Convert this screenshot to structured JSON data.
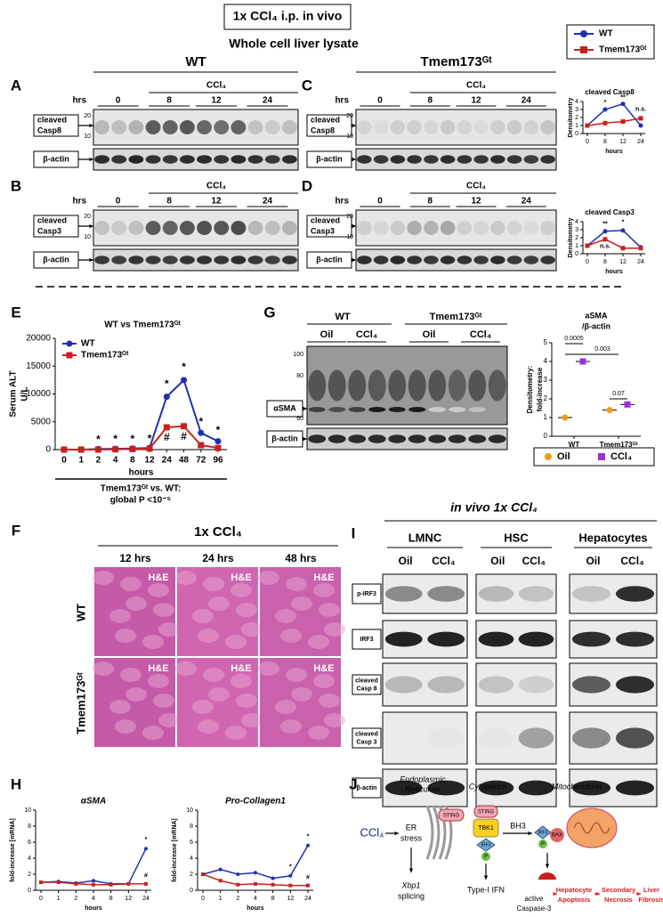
{
  "figure": {
    "title": "1x CCl₄ i.p. in vivo",
    "subtitle": "Whole cell liver lysate",
    "legend": [
      {
        "name": "WT",
        "color": "#1f2fb5"
      },
      {
        "name": "Tmem173ᴳᵗ",
        "color": "#c8201e"
      }
    ]
  },
  "blots": {
    "A": {
      "label": "A",
      "group": "WT",
      "hrs": "hrs",
      "treatment": "CCl₄",
      "times": [
        "0",
        "8",
        "12",
        "24"
      ],
      "mw": [
        "20",
        "10"
      ],
      "target": [
        "cleaved",
        "Casp8"
      ],
      "loading": "β-actin"
    },
    "B": {
      "label": "B",
      "hrs": "hrs",
      "treatment": "CCl₄",
      "times": [
        "0",
        "8",
        "12",
        "24"
      ],
      "mw": [
        "20",
        "10"
      ],
      "target": [
        "cleaved",
        "Casp3"
      ],
      "loading": "β-actin"
    },
    "C": {
      "label": "C",
      "group": "Tmem173ᴳᵗ",
      "hrs": "hrs",
      "treatment": "CCl₄",
      "times": [
        "0",
        "8",
        "12",
        "24"
      ],
      "mw": [
        "20",
        "10"
      ],
      "target": [
        "cleaved",
        "Casp8"
      ],
      "loading": "β-actin"
    },
    "D": {
      "label": "D",
      "hrs": "hrs",
      "treatment": "CCl₄",
      "times": [
        "0",
        "8",
        "12",
        "24"
      ],
      "mw": [
        "20",
        "10"
      ],
      "target": [
        "cleaved",
        "Casp3"
      ],
      "loading": "β-actin"
    }
  },
  "chart_data": [
    {
      "type": "line",
      "title": "cleaved Casp8",
      "y_label": "Densitometry",
      "x_label": "hours",
      "categories": [
        "0",
        "8",
        "12",
        "24"
      ],
      "ylim": [
        0,
        4
      ],
      "yticks": [
        0,
        1,
        2,
        3,
        4
      ],
      "series": [
        {
          "name": "WT",
          "color": "#1f2fb5",
          "values": [
            1,
            3.0,
            3.7,
            1.0
          ]
        },
        {
          "name": "Tmem173ᴳᵗ",
          "color": "#c8201e",
          "values": [
            1,
            1.3,
            1.5,
            1.9
          ]
        }
      ],
      "annotations": [
        "*",
        "**",
        "n.s."
      ]
    },
    {
      "type": "line",
      "title": "cleaved Casp3",
      "y_label": "Densitometry",
      "x_label": "hours",
      "categories": [
        "0",
        "8",
        "12",
        "24"
      ],
      "ylim": [
        0,
        4
      ],
      "yticks": [
        0,
        1,
        2,
        3,
        4
      ],
      "series": [
        {
          "name": "WT",
          "color": "#1f2fb5",
          "values": [
            1,
            2.8,
            2.9,
            0.8
          ]
        },
        {
          "name": "Tmem173ᴳᵗ",
          "color": "#c8201e",
          "values": [
            1,
            1.8,
            0.7,
            0.7
          ]
        }
      ],
      "annotations": [
        "**",
        "*",
        "n.s."
      ]
    },
    {
      "type": "line",
      "title": "WT vs Tmem173ᴳᵗ",
      "y_label": [
        "Serum ALT",
        "U/L"
      ],
      "x_label": "hours",
      "legend": "upper left",
      "categories": [
        "0",
        "1",
        "2",
        "4",
        "8",
        "12",
        "24",
        "48",
        "72",
        "96"
      ],
      "ylim": [
        0,
        20000
      ],
      "yticks": [
        0,
        5000,
        10000,
        15000,
        20000
      ],
      "series": [
        {
          "name": "WT",
          "color": "#1f2fb5",
          "values": [
            0,
            0,
            100,
            150,
            200,
            300,
            9500,
            12500,
            3000,
            1500
          ]
        },
        {
          "name": "Tmem173ᴳᵗ",
          "color": "#c8201e",
          "values": [
            0,
            0,
            0,
            50,
            100,
            200,
            4000,
            4200,
            800,
            300
          ]
        }
      ],
      "annotations": [
        "*",
        "*",
        "*",
        "*",
        "*",
        "*",
        "*",
        "*",
        "#",
        "#"
      ]
    },
    {
      "type": "dot",
      "title": [
        "aSMA",
        "/β-actin"
      ],
      "y_label": [
        "Densitometry:",
        "fold-increase"
      ],
      "categories": [
        "WT",
        "Tmem173ᴳᵗ"
      ],
      "ylim": [
        0,
        5
      ],
      "yticks": [
        0,
        1,
        2,
        3,
        4,
        5
      ],
      "series": [
        {
          "name": "Oil",
          "color": "#f39c12",
          "values": [
            1.0,
            1.4
          ]
        },
        {
          "name": "CCl₄",
          "color": "#9b30d9",
          "values": [
            4.0,
            1.7
          ]
        }
      ],
      "annotations": [
        "0.0005",
        "0.003",
        "0.07"
      ]
    },
    {
      "type": "line",
      "title": "αSMA",
      "y_label": "fold-increase [mRNA]",
      "x_label": "hours",
      "categories": [
        "0",
        "1",
        "2",
        "4",
        "8",
        "12",
        "24"
      ],
      "ylim": [
        0,
        10
      ],
      "yticks": [
        0,
        2,
        4,
        6,
        8,
        10
      ],
      "series": [
        {
          "name": "WT",
          "color": "#1f2fb5",
          "values": [
            1,
            1.1,
            0.9,
            1.2,
            0.8,
            0.8,
            5.2
          ]
        },
        {
          "name": "Tmem173ᴳᵗ",
          "color": "#c8201e",
          "values": [
            1,
            1.0,
            0.8,
            0.7,
            0.7,
            0.8,
            0.8
          ]
        }
      ],
      "annotations": [
        "*",
        "#"
      ]
    },
    {
      "type": "line",
      "title": "Pro-Collagen1",
      "y_label": "fold-increase [mRNA]",
      "x_label": "hours",
      "categories": [
        "0",
        "1",
        "2",
        "4",
        "8",
        "12",
        "24"
      ],
      "ylim": [
        0,
        10
      ],
      "yticks": [
        0,
        2,
        4,
        6,
        8,
        10
      ],
      "series": [
        {
          "name": "WT",
          "color": "#1f2fb5",
          "values": [
            2,
            2.6,
            2.0,
            2.2,
            1.5,
            1.8,
            5.6
          ]
        },
        {
          "name": "Tmem173ᴳᵗ",
          "color": "#c8201e",
          "values": [
            2,
            1.2,
            0.7,
            0.8,
            0.7,
            0.6,
            0.6
          ]
        }
      ],
      "annotations": [
        "*",
        "*",
        "#"
      ]
    }
  ],
  "panel_e": {
    "label": "E",
    "footer": [
      "Tmem173ᴳᵗ vs. WT:",
      "global P <10⁻⁵"
    ]
  },
  "panel_g": {
    "label": "G",
    "groups": [
      "WT",
      "Tmem173ᴳᵗ"
    ],
    "treatments": [
      "Oil",
      "CCl₄",
      "Oil",
      "CCl₄"
    ],
    "mw": [
      "100",
      "80",
      "60"
    ],
    "target": "αSMA",
    "loading": "β-actin"
  },
  "panel_f": {
    "label": "F",
    "title": "1x CCl₄",
    "columns": [
      "12 hrs",
      "24 hrs",
      "48 hrs"
    ],
    "rows": [
      "WT",
      "Tmem173ᴳᵗ"
    ],
    "stain": "H&E"
  },
  "panel_i": {
    "label": "I",
    "title": "in vivo 1x CCl₄",
    "cell_types": [
      "LMNC",
      "HSC",
      "Hepatocytes"
    ],
    "treatments": [
      "Oil",
      "CCl₄"
    ],
    "rows": [
      [
        "p-IRF3"
      ],
      [
        "IRF3"
      ],
      [
        "cleaved",
        "Casp 8"
      ],
      [
        "cleaved",
        "Casp 3"
      ],
      [
        "β-actin"
      ]
    ]
  },
  "panel_h": {
    "label": "H"
  },
  "panel_j": {
    "label": "J",
    "compartments": [
      [
        "Endoplasmic",
        "Reticulum"
      ],
      "Cytoplasm",
      "Mitochondrion"
    ],
    "agent": "CCl₄",
    "er_stress": [
      "ER",
      "stress"
    ],
    "sting": "STING",
    "tbk1": "TBK1",
    "irf3": "IRF3",
    "p": "P",
    "bh3": "BH3",
    "bax": "BAX",
    "xbp1": [
      "Xbp1",
      "splicing"
    ],
    "ifn": "Type-I IFN",
    "caspase": [
      "active",
      "Caspase-3"
    ],
    "outcomes": [
      [
        "Hepatocyte",
        "Apoptosis"
      ],
      [
        "Secondary",
        "Necrosis"
      ],
      [
        "Liver",
        "Fibrosis"
      ]
    ]
  }
}
